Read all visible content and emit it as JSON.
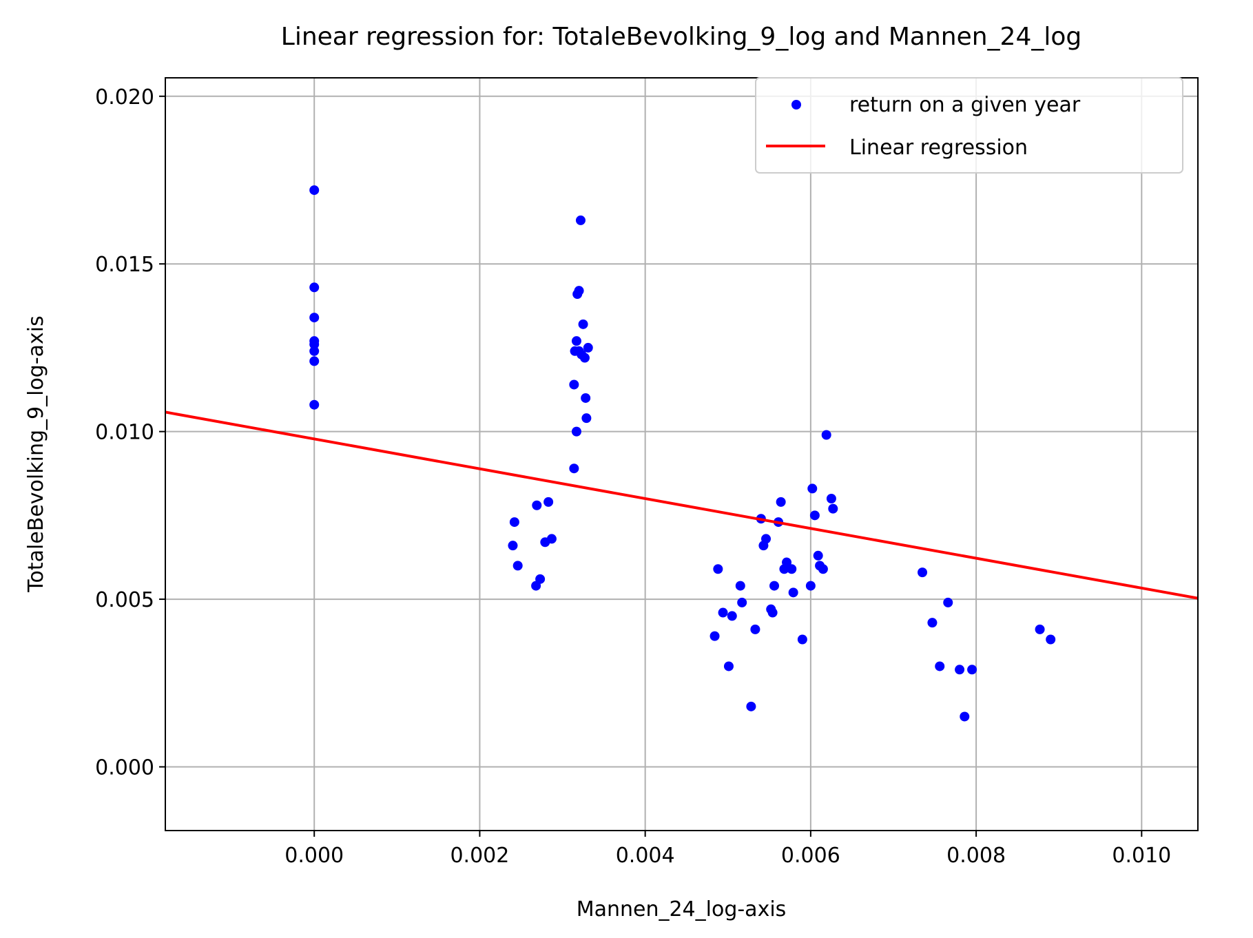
{
  "chart_data": {
    "type": "scatter",
    "title": "Linear regression for: TotaleBevolking_9_log and Mannen_24_log",
    "xlabel": "Mannen_24_log-axis",
    "ylabel": "TotaleBevolking_9_log-axis",
    "xlim": [
      -0.0018,
      0.01068
    ],
    "ylim": [
      -0.0019,
      0.02055
    ],
    "xticks": [
      0.0,
      0.002,
      0.004,
      0.006,
      0.008,
      0.01
    ],
    "yticks": [
      0.0,
      0.005,
      0.01,
      0.015,
      0.02
    ],
    "xtick_labels": [
      "0.000",
      "0.002",
      "0.004",
      "0.006",
      "0.008",
      "0.010"
    ],
    "ytick_labels": [
      "0.000",
      "0.005",
      "0.010",
      "0.015",
      "0.020"
    ],
    "grid": true,
    "legend_position": "top-right",
    "series": [
      {
        "name": "return on a given year",
        "kind": "scatter",
        "color": "#0000ff",
        "points": [
          [
            0.0,
            0.0172
          ],
          [
            0.0,
            0.0143
          ],
          [
            0.0,
            0.0134
          ],
          [
            0.0,
            0.0127
          ],
          [
            0.0,
            0.0126
          ],
          [
            0.0,
            0.0124
          ],
          [
            0.0,
            0.0121
          ],
          [
            0.0,
            0.0108
          ],
          [
            0.00322,
            0.0163
          ],
          [
            0.0032,
            0.0142
          ],
          [
            0.00318,
            0.0141
          ],
          [
            0.00325,
            0.0132
          ],
          [
            0.00317,
            0.0127
          ],
          [
            0.00315,
            0.0124
          ],
          [
            0.0032,
            0.0124
          ],
          [
            0.00331,
            0.0125
          ],
          [
            0.00327,
            0.0122
          ],
          [
            0.00323,
            0.0123
          ],
          [
            0.00314,
            0.0114
          ],
          [
            0.00328,
            0.011
          ],
          [
            0.00329,
            0.0104
          ],
          [
            0.00317,
            0.01
          ],
          [
            0.00314,
            0.0089
          ],
          [
            0.00242,
            0.0073
          ],
          [
            0.0024,
            0.0066
          ],
          [
            0.00246,
            0.006
          ],
          [
            0.00269,
            0.0078
          ],
          [
            0.00283,
            0.0079
          ],
          [
            0.00287,
            0.0068
          ],
          [
            0.00279,
            0.0067
          ],
          [
            0.00268,
            0.0054
          ],
          [
            0.00273,
            0.0056
          ],
          [
            0.00619,
            0.0099
          ],
          [
            0.00602,
            0.0083
          ],
          [
            0.00625,
            0.008
          ],
          [
            0.00627,
            0.0077
          ],
          [
            0.00605,
            0.0075
          ],
          [
            0.00564,
            0.0079
          ],
          [
            0.0054,
            0.0074
          ],
          [
            0.00561,
            0.0073
          ],
          [
            0.00546,
            0.0068
          ],
          [
            0.00543,
            0.0066
          ],
          [
            0.00609,
            0.0063
          ],
          [
            0.00611,
            0.006
          ],
          [
            0.00615,
            0.0059
          ],
          [
            0.00571,
            0.0061
          ],
          [
            0.00568,
            0.0059
          ],
          [
            0.00577,
            0.0059
          ],
          [
            0.006,
            0.0054
          ],
          [
            0.00556,
            0.0054
          ],
          [
            0.00579,
            0.0052
          ],
          [
            0.00488,
            0.0059
          ],
          [
            0.00515,
            0.0054
          ],
          [
            0.00517,
            0.0049
          ],
          [
            0.00494,
            0.0046
          ],
          [
            0.00505,
            0.0045
          ],
          [
            0.00552,
            0.0047
          ],
          [
            0.00554,
            0.0046
          ],
          [
            0.00533,
            0.0041
          ],
          [
            0.00484,
            0.0039
          ],
          [
            0.0059,
            0.0038
          ],
          [
            0.00501,
            0.003
          ],
          [
            0.00528,
            0.0018
          ],
          [
            0.00735,
            0.0058
          ],
          [
            0.00766,
            0.0049
          ],
          [
            0.00747,
            0.0043
          ],
          [
            0.00756,
            0.003
          ],
          [
            0.0078,
            0.0029
          ],
          [
            0.00795,
            0.0029
          ],
          [
            0.00786,
            0.0015
          ],
          [
            0.00877,
            0.0041
          ],
          [
            0.0089,
            0.0038
          ]
        ]
      },
      {
        "name": "Linear regression",
        "kind": "line",
        "color": "#ff0000",
        "x": [
          -0.0018,
          0.01068
        ],
        "y": [
          0.01058,
          0.00503
        ]
      }
    ]
  }
}
